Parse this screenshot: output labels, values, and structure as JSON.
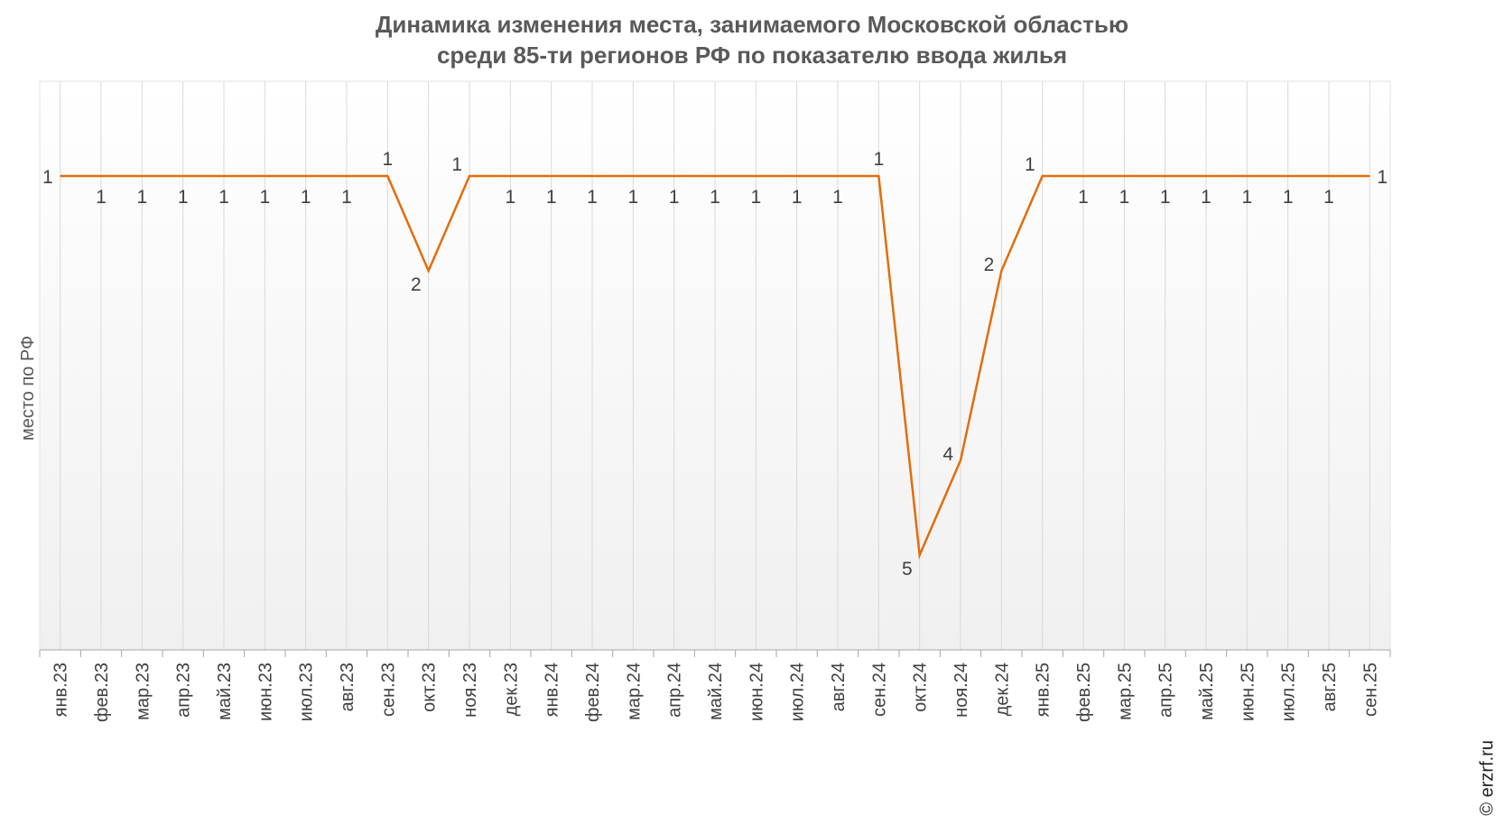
{
  "chart_data": {
    "type": "line",
    "title_lines": [
      "Динамика изменения места, занимаемого Московской областью",
      "среди 85-ти регионов РФ по показателю ввода жилья"
    ],
    "xlabel": "",
    "ylabel": "место по РФ",
    "y_inverted": true,
    "ylim": [
      0,
      6
    ],
    "grid": "vertical",
    "categories": [
      "янв.23",
      "фев.23",
      "мар.23",
      "апр.23",
      "май.23",
      "июн.23",
      "июл.23",
      "авг.23",
      "сен.23",
      "окт.23",
      "ноя.23",
      "дек.23",
      "янв.24",
      "фев.24",
      "мар.24",
      "апр.24",
      "май.24",
      "июн.24",
      "июл.24",
      "авг.24",
      "сен.24",
      "окт.24",
      "ноя.24",
      "дек.24",
      "янв.25",
      "фев.25",
      "мар.25",
      "апр.25",
      "май.25",
      "июн.25",
      "июл.25",
      "авг.25",
      "сен.25"
    ],
    "series": [
      {
        "values": [
          1,
          1,
          1,
          1,
          1,
          1,
          1,
          1,
          1,
          2,
          1,
          1,
          1,
          1,
          1,
          1,
          1,
          1,
          1,
          1,
          1,
          5,
          4,
          2,
          1,
          1,
          1,
          1,
          1,
          1,
          1,
          1,
          1
        ],
        "color": "#E46C0A"
      }
    ],
    "data_labels": [
      "1",
      "1",
      "1",
      "1",
      "1",
      "1",
      "1",
      "1",
      "1",
      "2",
      "1",
      "1",
      "1",
      "1",
      "1",
      "1",
      "1",
      "1",
      "1",
      "1",
      "1",
      "5",
      "4",
      "2",
      "1",
      "1",
      "1",
      "1",
      "1",
      "1",
      "1",
      "1",
      "1"
    ]
  },
  "copyright": "© erzrf.ru"
}
